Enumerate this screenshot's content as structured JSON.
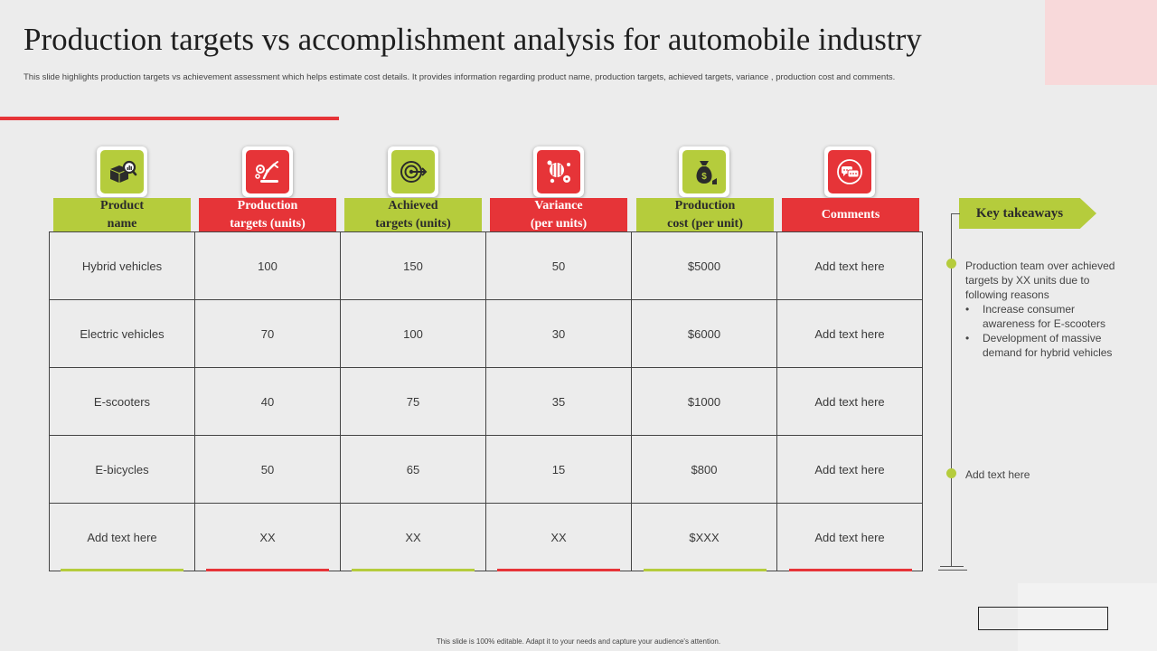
{
  "title": "Production targets vs accomplishment analysis for automobile industry",
  "subtitle": "This slide highlights production targets vs achievement assessment which helps estimate cost details. It provides information regarding product name,  production targets, achieved targets, variance , production cost and comments.",
  "columns": [
    {
      "line1": "Product",
      "line2": "name",
      "icon": "product-analysis-icon",
      "color": "#b5cc3c"
    },
    {
      "line1": "Production",
      "line2": "targets (units)",
      "icon": "robotic-arm-icon",
      "color": "#e63438"
    },
    {
      "line1": "Achieved",
      "line2": "targets (units)",
      "icon": "target-icon",
      "color": "#b5cc3c"
    },
    {
      "line1": "Variance",
      "line2": "(per units)",
      "icon": "molecule-icon",
      "color": "#e63438"
    },
    {
      "line1": "Production",
      "line2": "cost (per unit)",
      "icon": "money-bag-icon",
      "color": "#b5cc3c"
    },
    {
      "line1": "Comments",
      "line2": "",
      "icon": "chat-bubbles-icon",
      "color": "#e63438"
    }
  ],
  "rows": [
    [
      "Hybrid vehicles",
      "100",
      "150",
      "50",
      "$5000",
      "Add text here"
    ],
    [
      "Electric vehicles",
      "70",
      "100",
      "30",
      "$6000",
      "Add text here"
    ],
    [
      "E-scooters",
      "40",
      "75",
      "35",
      "$1000",
      "Add text here"
    ],
    [
      "E-bicycles",
      "50",
      "65",
      "15",
      "$800",
      "Add text here"
    ],
    [
      "Add text here",
      "XX",
      "XX",
      "XX",
      "$XXX",
      "Add text here"
    ]
  ],
  "key_takeaways": {
    "title": "Key takeaways",
    "point1": "Production team over achieved  targets by XX units due to following reasons",
    "bullets": [
      "Increase consumer awareness for E-scooters",
      "Development  of massive demand for hybrid vehicles"
    ],
    "point2": "Add text here"
  },
  "footer": "This slide is 100% editable. Adapt it to your needs and capture your audience's attention.",
  "colors": {
    "green": "#b5cc3c",
    "red": "#e63438",
    "background": "#ececec"
  }
}
